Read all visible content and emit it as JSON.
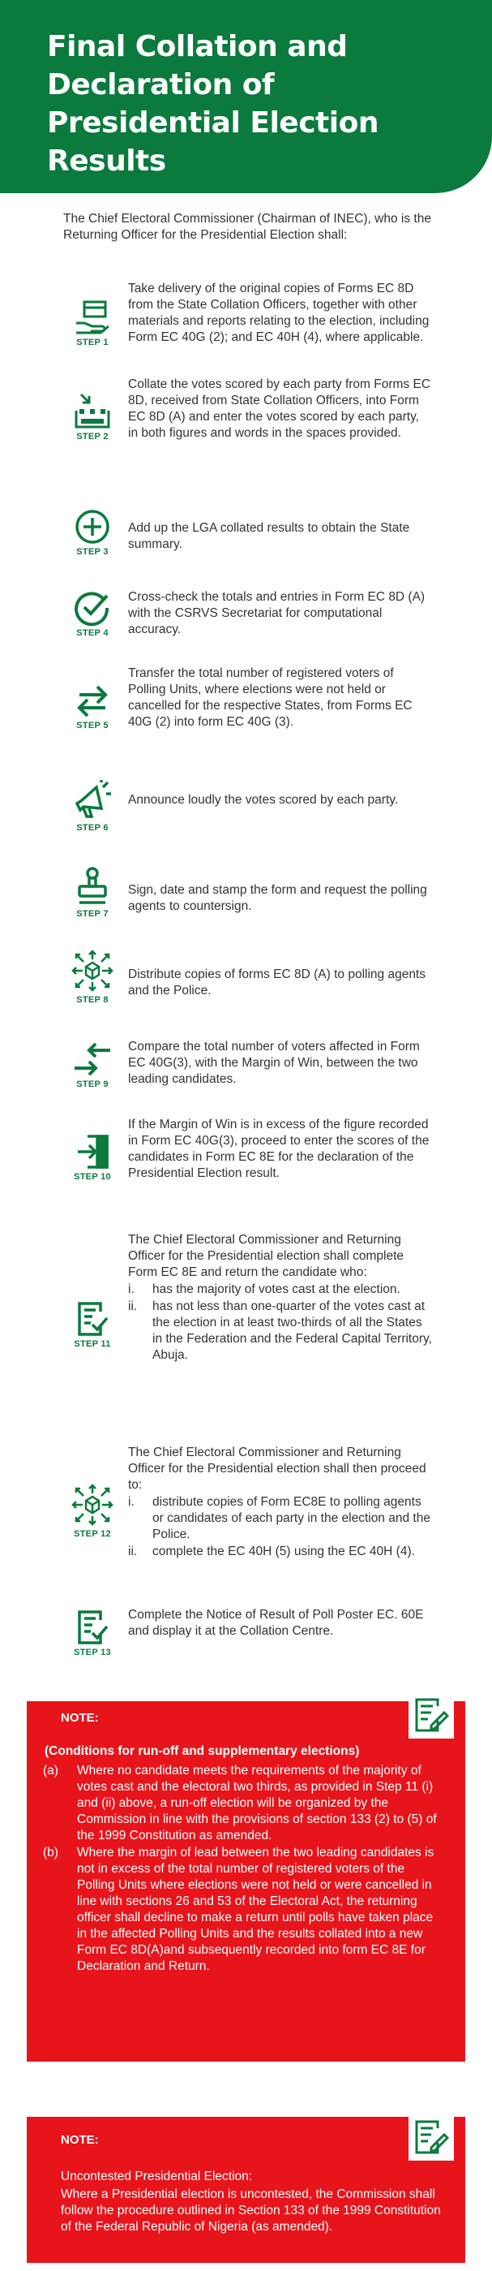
{
  "header": {
    "title": "Final Collation and Declaration of Presidential Election Results"
  },
  "intro": "The Chief Electoral Commissioner (Chairman of INEC), who is the Returning Officer for the Presidential Election shall:",
  "steps": [
    {
      "label": "STEP 1",
      "icon": "hand-box-icon",
      "text": "Take delivery of the original copies of Forms EC 8D from the State Collation Officers, together with other materials and reports relating to the election, including Form EC 40G (2); and EC 40H (4), where applicable."
    },
    {
      "label": "STEP 2",
      "icon": "collate-icon",
      "text": "Collate the votes scored by each party from Forms EC 8D, received from State Collation Officers, into Form EC 8D (A) and enter the votes scored by each party, in both figures and words in the spaces provided."
    },
    {
      "label": "STEP 3",
      "icon": "plus-circle-icon",
      "text": "Add up the LGA collated results to obtain the State summary."
    },
    {
      "label": "STEP 4",
      "icon": "check-circle-icon",
      "text": "Cross-check the totals and entries in Form EC 8D (A) with the CSRVS Secretariat for computational accuracy."
    },
    {
      "label": "STEP 5",
      "icon": "transfer-arrows-icon",
      "text": "Transfer the total number of registered voters of Polling Units, where elections were not held or cancelled for the respective States, from Forms EC 40G (2) into form EC 40G (3)."
    },
    {
      "label": "STEP 6",
      "icon": "megaphone-icon",
      "text": "Announce loudly the votes scored by each party."
    },
    {
      "label": "STEP 7",
      "icon": "stamp-icon",
      "text": "Sign, date and stamp the form and request the polling agents to countersign."
    },
    {
      "label": "STEP 8",
      "icon": "distribute-icon",
      "text": "Distribute copies of forms EC 8D (A) to polling agents and the Police."
    },
    {
      "label": "STEP 9",
      "icon": "compare-arrows-icon",
      "text": "Compare the total number of voters affected in Form EC 40G(3), with the Margin of Win, between the two leading candidates."
    },
    {
      "label": "STEP 10",
      "icon": "enter-door-icon",
      "text": "If the Margin of Win is in excess of the figure recorded in Form EC 40G(3), proceed to enter the scores of the candidates in Form EC 8E for the declaration of the Presidential Election result."
    },
    {
      "label": "STEP 11",
      "icon": "document-check-icon",
      "text": "The Chief Electoral Commissioner and Returning Officer for the Presidential election shall complete Form EC 8E and return the candidate who:",
      "items": [
        {
          "n": "i.",
          "t": "has the majority of votes cast at the election."
        },
        {
          "n": "ii.",
          "t": "has not less than one-quarter of the votes cast at the election in at least two-thirds of all the States in the Federation and the Federal Capital Territory, Abuja."
        }
      ]
    },
    {
      "label": "STEP 12",
      "icon": "distribute-icon",
      "text": "The Chief Electoral Commissioner and Returning Officer for the Presidential election shall then proceed to:",
      "items": [
        {
          "n": "i.",
          "t": "distribute copies of Form EC8E to polling agents or candidates of each party in the election and the Police."
        },
        {
          "n": "ii.",
          "t": "complete the EC 40H (5) using the EC 40H (4)."
        }
      ]
    },
    {
      "label": "STEP 13",
      "icon": "document-check-icon",
      "text": "Complete the Notice of Result of Poll Poster EC. 60E and display it at the Collation Centre."
    }
  ],
  "notes": [
    {
      "heading": "NOTE:",
      "icon": "document-edit-icon",
      "subheading": "(Conditions for run-off and supplementary elections)",
      "items": [
        {
          "n": "(a)",
          "t": "Where no candidate meets the requirements of the majority of votes cast and the electoral two thirds, as provided in Step 11 (i) and (ii) above, a run-off election will be organized by the Commission in line with the provisions of section 133 (2) to (5) of the 1999 Constitution as amended."
        },
        {
          "n": "(b)",
          "t": "Where the margin of lead between the two leading candidates is not in excess of the total number of registered voters of the Polling Units where elections were not held or were cancelled in line with sections 26 and 53 of the Electoral Act, the returning officer shall decline to make a return until polls have taken place in the affected Polling Units and the results collated into a new Form EC 8D(A)and subsequently recorded into form EC 8E for Declaration and Return."
        }
      ]
    },
    {
      "heading": "NOTE:",
      "icon": "document-edit-icon",
      "subheading": "Uncontested Presidential Election:",
      "body": "Where a Presidential election is uncontested, the Commission shall follow the procedure outlined in Section 133 of the 1999 Constitution of the Federal Republic of Nigeria (as amended)."
    }
  ],
  "colors": {
    "green": "#0a7a3d",
    "red": "#e8141b"
  }
}
